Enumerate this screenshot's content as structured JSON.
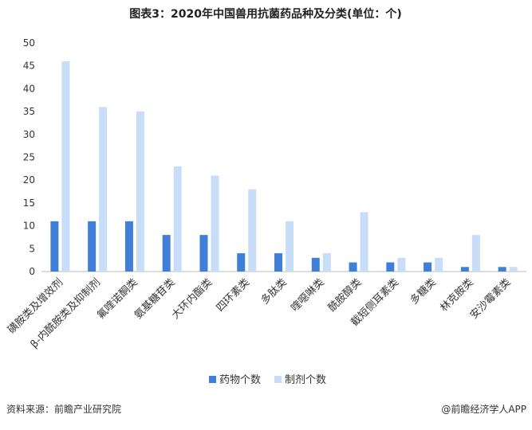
{
  "chart_data": {
    "type": "bar",
    "title": "图表3：2020年中国兽用抗菌药品种及分类(单位：个)",
    "categories": [
      "磺胺类及增效剂",
      "β-内酰胺类及抑制剂",
      "氟喹诺酮类",
      "氨基糖苷类",
      "大环内酯类",
      "四环素类",
      "多肽类",
      "喹噁啉类",
      "酰胺醇类",
      "截短侧耳素类",
      "多糖类",
      "林克胺类",
      "安沙霉素类"
    ],
    "series": [
      {
        "name": "药物个数",
        "color": "#3f7fd8",
        "values": [
          11,
          11,
          11,
          8,
          8,
          4,
          4,
          3,
          2,
          2,
          2,
          1,
          1
        ]
      },
      {
        "name": "制剂个数",
        "color": "#c8ddf7",
        "values": [
          46,
          36,
          35,
          23,
          21,
          18,
          11,
          4,
          13,
          3,
          3,
          8,
          1
        ]
      }
    ],
    "ylim": [
      0,
      50
    ],
    "yticks": [
      0,
      5,
      10,
      15,
      20,
      25,
      30,
      35,
      40,
      45,
      50
    ],
    "grid": false,
    "legend": "bottom",
    "source": "资料来源：前瞻产业研究院",
    "credit": "@前瞻经济学人APP"
  }
}
